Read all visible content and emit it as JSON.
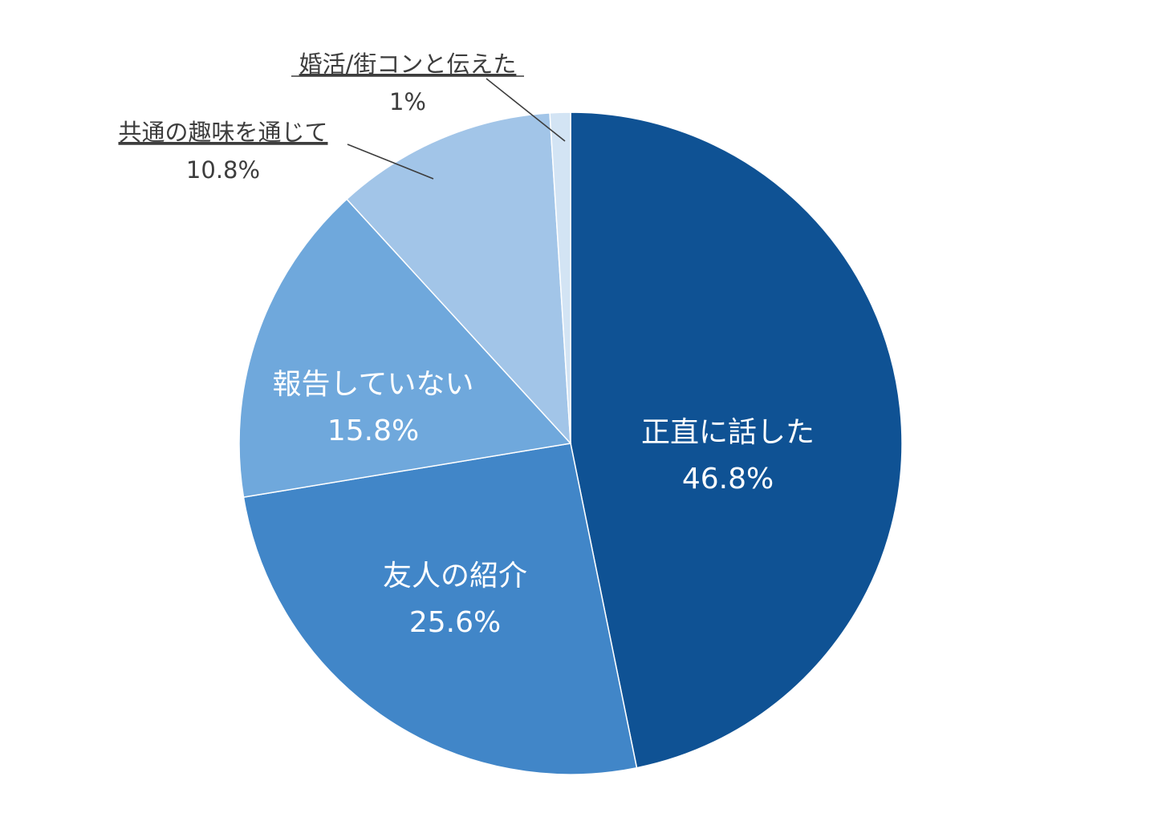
{
  "chart_data": {
    "type": "pie",
    "title": "",
    "start_angle_deg": 0,
    "direction": "clockwise",
    "slices": [
      {
        "label": "正直に話した",
        "value": 46.8,
        "value_label": "46.8%",
        "color": "#0f5294",
        "label_style": "inside"
      },
      {
        "label": "友人の紹介",
        "value": 25.6,
        "value_label": "25.6%",
        "color": "#4186c8",
        "label_style": "inside"
      },
      {
        "label": "報告していない",
        "value": 15.8,
        "value_label": "15.8%",
        "color": "#6fa8dc",
        "label_style": "inside"
      },
      {
        "label": "共通の趣味を通じて",
        "value": 10.8,
        "value_label": "10.8%",
        "color": "#a2c5e8",
        "label_style": "outside"
      },
      {
        "label": "婚活/街コンと伝えた",
        "value": 1,
        "value_label": "1%",
        "color": "#d3e4f4",
        "label_style": "outside"
      }
    ],
    "legend": "none",
    "grid": false
  }
}
